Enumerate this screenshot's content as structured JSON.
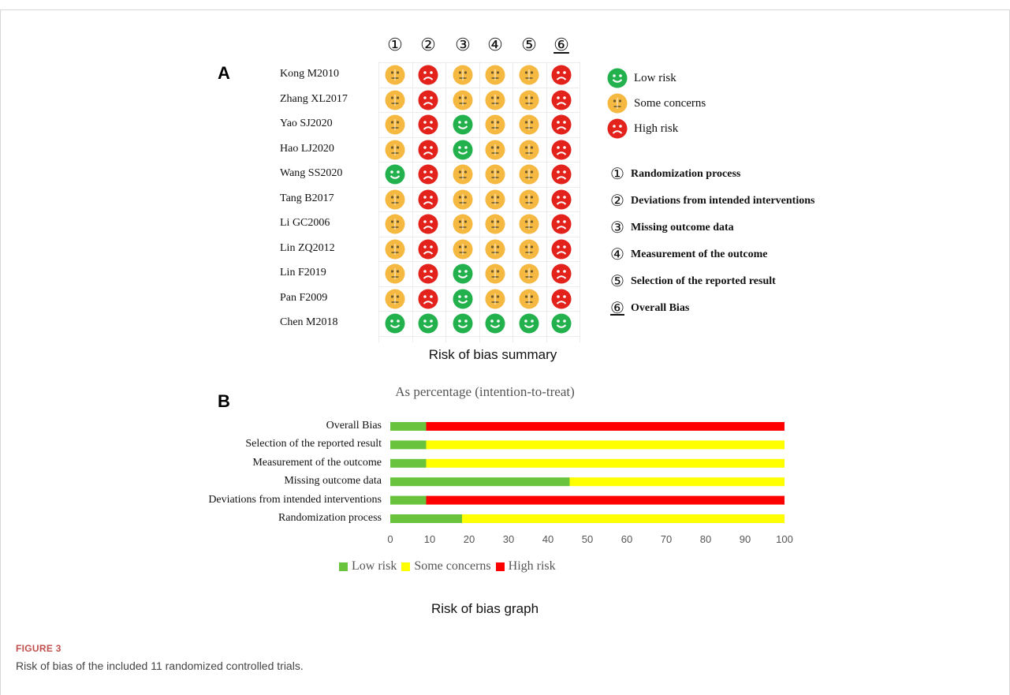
{
  "figure": {
    "label": "FIGURE 3",
    "caption": "Risk of bias of the included 11 randomized controlled trials."
  },
  "panel_a": {
    "letter": "A",
    "caption": "Risk of bias summary",
    "column_headers": [
      "①",
      "②",
      "③",
      "④",
      "⑤",
      "⑥"
    ],
    "studies": [
      {
        "name": "Kong M2010",
        "ratings": [
          "some",
          "high",
          "some",
          "some",
          "some",
          "high"
        ]
      },
      {
        "name": "Zhang XL2017",
        "ratings": [
          "some",
          "high",
          "some",
          "some",
          "some",
          "high"
        ]
      },
      {
        "name": "Yao SJ2020",
        "ratings": [
          "some",
          "high",
          "low",
          "some",
          "some",
          "high"
        ]
      },
      {
        "name": "Hao LJ2020",
        "ratings": [
          "some",
          "high",
          "low",
          "some",
          "some",
          "high"
        ]
      },
      {
        "name": "Wang SS2020",
        "ratings": [
          "low",
          "high",
          "some",
          "some",
          "some",
          "high"
        ]
      },
      {
        "name": "Tang B2017",
        "ratings": [
          "some",
          "high",
          "some",
          "some",
          "some",
          "high"
        ]
      },
      {
        "name": "Li GC2006",
        "ratings": [
          "some",
          "high",
          "some",
          "some",
          "some",
          "high"
        ]
      },
      {
        "name": "Lin ZQ2012",
        "ratings": [
          "some",
          "high",
          "some",
          "some",
          "some",
          "high"
        ]
      },
      {
        "name": "Lin F2019",
        "ratings": [
          "some",
          "high",
          "low",
          "some",
          "some",
          "high"
        ]
      },
      {
        "name": "Pan F2009",
        "ratings": [
          "some",
          "high",
          "low",
          "some",
          "some",
          "high"
        ]
      },
      {
        "name": "Chen M2018",
        "ratings": [
          "low",
          "low",
          "low",
          "low",
          "low",
          "low"
        ]
      }
    ],
    "legend": [
      {
        "key": "low",
        "label": "Low risk"
      },
      {
        "key": "some",
        "label": "Some concerns"
      },
      {
        "key": "high",
        "label": "High risk"
      }
    ],
    "domains": [
      {
        "num": "①",
        "label": "Randomization process"
      },
      {
        "num": "②",
        "label": "Deviations from intended interventions"
      },
      {
        "num": "③",
        "label": "Missing outcome data"
      },
      {
        "num": "④",
        "label": "Measurement of the outcome"
      },
      {
        "num": "⑤",
        "label": "Selection of the reported result"
      },
      {
        "num": "⑥",
        "label": "Overall Bias"
      }
    ],
    "colors": {
      "low": "#22b14c",
      "some": "#f5b841",
      "high": "#e3221c"
    }
  },
  "panel_b": {
    "letter": "B",
    "caption": "Risk of bias graph"
  },
  "chart_data": {
    "type": "bar",
    "orientation": "horizontal",
    "stacked": true,
    "title": "As percentage (intention-to-treat)",
    "categories": [
      "Overall Bias",
      "Selection of the reported result",
      "Measurement of the outcome",
      "Missing outcome data",
      "Deviations from intended interventions",
      "Randomization process"
    ],
    "series": [
      {
        "name": "Low risk",
        "color": "#6ac33d",
        "values": [
          9.1,
          9.1,
          9.1,
          45.5,
          9.1,
          18.2
        ]
      },
      {
        "name": "Some concerns",
        "color": "#ffff00",
        "values": [
          0,
          90.9,
          90.9,
          54.5,
          0,
          81.8
        ]
      },
      {
        "name": "High risk",
        "color": "#ff0000",
        "values": [
          90.9,
          0,
          0,
          0,
          90.9,
          0
        ]
      }
    ],
    "xlim": [
      0,
      100
    ],
    "xticks": [
      "0",
      "10",
      "20",
      "30",
      "40",
      "50",
      "60",
      "70",
      "80",
      "90",
      "100"
    ],
    "legend_position": "bottom",
    "grid": false
  }
}
